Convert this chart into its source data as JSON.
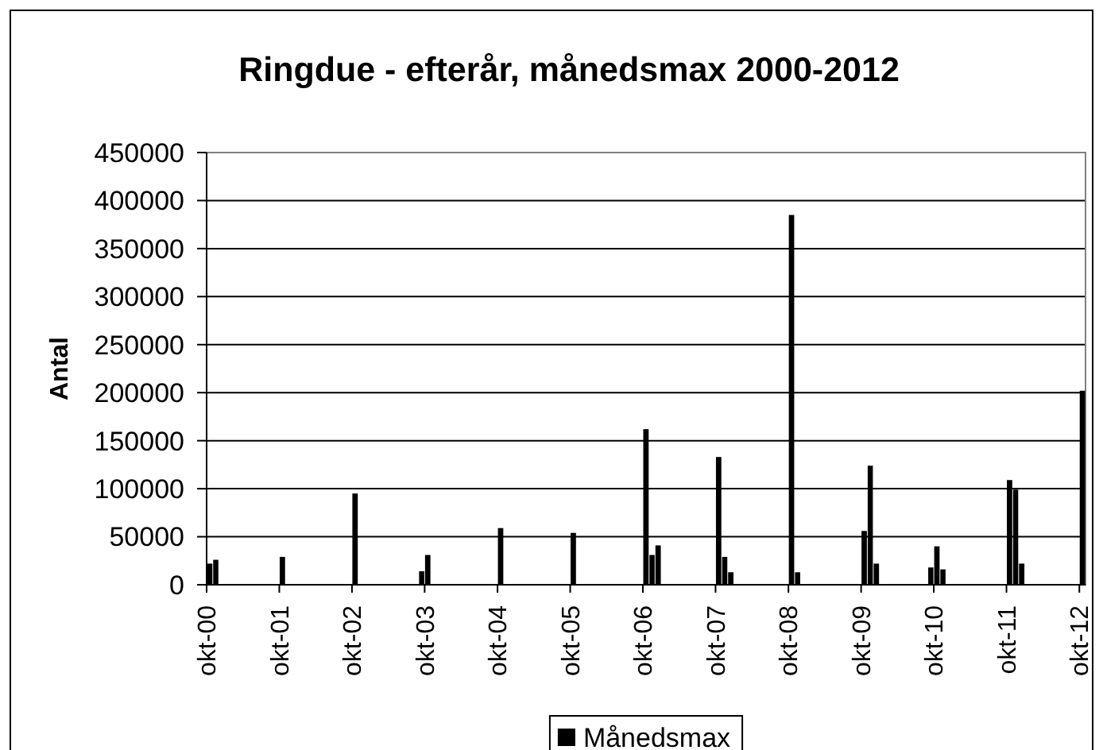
{
  "chart_data": {
    "type": "bar",
    "title": "Ringdue - efterår, månedsmax 2000-2012",
    "ylabel": "Antal",
    "x": [
      "2000-10",
      "2000-11",
      "2001-10",
      "2002-10",
      "2003-09",
      "2003-10",
      "2004-10",
      "2005-10",
      "2006-10",
      "2006-11",
      "2006-12",
      "2007-10",
      "2007-11",
      "2007-12",
      "2008-10",
      "2008-11",
      "2009-10",
      "2009-11",
      "2009-12",
      "2010-09",
      "2010-10",
      "2010-11",
      "2011-10",
      "2011-11",
      "2011-12",
      "2012-10"
    ],
    "series": [
      {
        "name": "Månedsmax",
        "color": "#000000",
        "values": [
          22000,
          26000,
          29000,
          95000,
          14000,
          31000,
          59000,
          54000,
          162000,
          31000,
          41000,
          133000,
          29000,
          13000,
          385000,
          13000,
          56000,
          124000,
          22000,
          18000,
          40000,
          16000,
          109000,
          99000,
          22000,
          202000
        ]
      }
    ],
    "xlim": [
      "2000-10",
      "2012-11"
    ],
    "xticks": [
      {
        "value": "2000-10",
        "label": "okt-00"
      },
      {
        "value": "2001-10",
        "label": "okt-01"
      },
      {
        "value": "2002-10",
        "label": "okt-02"
      },
      {
        "value": "2003-10",
        "label": "okt-03"
      },
      {
        "value": "2004-10",
        "label": "okt-04"
      },
      {
        "value": "2005-10",
        "label": "okt-05"
      },
      {
        "value": "2006-10",
        "label": "okt-06"
      },
      {
        "value": "2007-10",
        "label": "okt-07"
      },
      {
        "value": "2008-10",
        "label": "okt-08"
      },
      {
        "value": "2009-10",
        "label": "okt-09"
      },
      {
        "value": "2010-10",
        "label": "okt-10"
      },
      {
        "value": "2011-10",
        "label": "okt-11"
      },
      {
        "value": "2012-10",
        "label": "okt-12"
      }
    ],
    "ylim": [
      0,
      450000
    ],
    "yticks": [
      0,
      50000,
      100000,
      150000,
      200000,
      250000,
      300000,
      350000,
      400000,
      450000
    ],
    "grid": "y",
    "legend": "bottom"
  }
}
